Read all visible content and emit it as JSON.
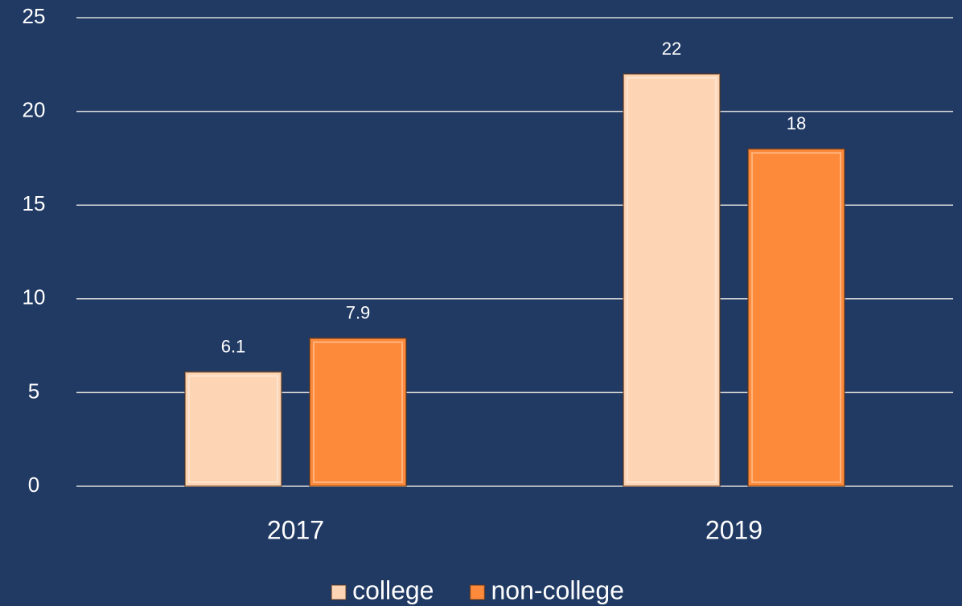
{
  "chart_data": {
    "type": "bar",
    "categories": [
      "2017",
      "2019"
    ],
    "series": [
      {
        "name": "college",
        "color": "#fdd5b4",
        "values": [
          6.1,
          22
        ]
      },
      {
        "name": "non-college",
        "color": "#fd8a3a",
        "values": [
          7.9,
          18
        ]
      }
    ],
    "ylim": [
      0,
      25
    ],
    "yticks": [
      0,
      5,
      10,
      15,
      20,
      25
    ],
    "grid": true,
    "legend": "bottom"
  }
}
